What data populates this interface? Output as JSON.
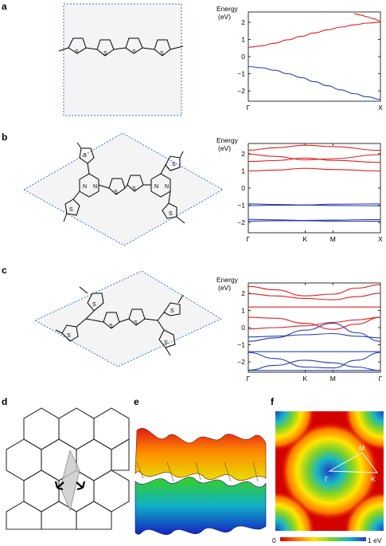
{
  "panel_labels": {
    "a": "a",
    "b": "b",
    "c": "c",
    "d": "d",
    "e": "e",
    "f": "f"
  },
  "molecule_atoms": {
    "sulfur": "S",
    "nitrogen": "N"
  },
  "colors": {
    "conduction": "#e02020",
    "valence": "#2a3fa8",
    "cell_border": "#3f6fd0",
    "cell_fill": "#f3f3f3"
  },
  "chart_data": [
    {
      "id": "a",
      "type": "line",
      "ylabel_line1": "Energy",
      "ylabel_line2": "(eV)",
      "ylim": [
        -2.6,
        2.6
      ],
      "yticks": [
        "2",
        "1",
        "0",
        "−1",
        "−2"
      ],
      "ytick_values": [
        2,
        1,
        0,
        -1,
        -2
      ],
      "xticks": [
        "Γ",
        "X"
      ],
      "xtick_pos": [
        0,
        1
      ],
      "series": [
        {
          "band": "conduction",
          "x": [
            0,
            0.1,
            0.2,
            0.3,
            0.4,
            0.5,
            0.6,
            0.7,
            0.8,
            0.9,
            1
          ],
          "y": [
            0.55,
            0.62,
            0.78,
            0.98,
            1.18,
            1.38,
            1.56,
            1.72,
            1.85,
            1.95,
            2.0
          ]
        },
        {
          "band": "conduction",
          "x": [
            0.8,
            0.85,
            0.9,
            0.95,
            1
          ],
          "y": [
            2.5,
            2.42,
            2.32,
            2.2,
            2.05
          ]
        },
        {
          "band": "valence",
          "x": [
            0,
            0.1,
            0.2,
            0.3,
            0.4,
            0.5,
            0.6,
            0.7,
            0.8,
            0.9,
            1
          ],
          "y": [
            -0.58,
            -0.65,
            -0.8,
            -1.0,
            -1.22,
            -1.46,
            -1.7,
            -1.94,
            -2.16,
            -2.34,
            -2.5
          ]
        }
      ]
    },
    {
      "id": "b",
      "type": "line",
      "ylabel_line1": "Energy",
      "ylabel_line2": "(eV)",
      "ylim": [
        -2.6,
        2.6
      ],
      "yticks": [
        "2",
        "1",
        "0",
        "−1",
        "−2"
      ],
      "ytick_values": [
        2,
        1,
        0,
        -1,
        -2
      ],
      "xticks": [
        "Γ",
        "K",
        "M",
        "X"
      ],
      "xtick_pos": [
        0,
        0.43,
        0.64,
        1
      ],
      "series": [
        {
          "band": "conduction",
          "x": [
            0,
            0.2,
            0.43,
            0.64,
            1
          ],
          "y": [
            2.2,
            2.35,
            2.5,
            2.42,
            2.2
          ]
        },
        {
          "band": "conduction",
          "x": [
            0,
            0.2,
            0.43,
            0.64,
            1
          ],
          "y": [
            1.98,
            1.85,
            1.65,
            1.72,
            1.95
          ]
        },
        {
          "band": "conduction",
          "x": [
            0,
            0.2,
            0.43,
            0.64,
            1
          ],
          "y": [
            1.55,
            1.6,
            1.75,
            1.62,
            1.5
          ]
        },
        {
          "band": "conduction",
          "x": [
            0,
            0.2,
            0.43,
            0.64,
            1
          ],
          "y": [
            1.0,
            1.05,
            1.15,
            1.08,
            1.0
          ]
        },
        {
          "band": "valence",
          "x": [
            0,
            0.2,
            0.43,
            0.64,
            1
          ],
          "y": [
            -0.92,
            -0.95,
            -0.98,
            -0.94,
            -0.92
          ]
        },
        {
          "band": "valence",
          "x": [
            0,
            0.2,
            0.43,
            0.64,
            1
          ],
          "y": [
            -1.02,
            -1.0,
            -0.99,
            -1.01,
            -1.03
          ]
        },
        {
          "band": "valence",
          "x": [
            0,
            0.2,
            0.43,
            0.64,
            1
          ],
          "y": [
            -1.82,
            -1.85,
            -1.88,
            -1.86,
            -1.83
          ]
        },
        {
          "band": "valence",
          "x": [
            0,
            0.2,
            0.43,
            0.64,
            1
          ],
          "y": [
            -1.92,
            -1.9,
            -1.9,
            -1.92,
            -1.93
          ]
        }
      ]
    },
    {
      "id": "c",
      "type": "line",
      "ylabel_line1": "Energy",
      "ylabel_line2": "(eV)",
      "ylim": [
        -2.6,
        2.6
      ],
      "yticks": [
        "2",
        "1",
        "0",
        "−1",
        "−2"
      ],
      "ytick_values": [
        2,
        1,
        0,
        -1,
        -2
      ],
      "xticks": [
        "Γ",
        "K",
        "M",
        "Γ"
      ],
      "xtick_pos": [
        0,
        0.43,
        0.64,
        1
      ],
      "series": [
        {
          "band": "conduction",
          "x": [
            0,
            0.2,
            0.43,
            0.64,
            0.82,
            1
          ],
          "y": [
            2.4,
            2.2,
            1.85,
            1.95,
            2.3,
            2.5
          ]
        },
        {
          "band": "conduction",
          "x": [
            0,
            0.2,
            0.43,
            0.64,
            0.82,
            1
          ],
          "y": [
            1.98,
            1.85,
            1.7,
            1.62,
            1.8,
            2.0
          ]
        },
        {
          "band": "conduction",
          "x": [
            0,
            0.2,
            0.43,
            0.64,
            0.82,
            1
          ],
          "y": [
            1.2,
            1.2,
            1.2,
            1.2,
            1.2,
            1.2
          ]
        },
        {
          "band": "conduction",
          "x": [
            0,
            0.2,
            0.43,
            0.64,
            0.82,
            1
          ],
          "y": [
            0.6,
            0.55,
            0.25,
            -0.1,
            0.2,
            0.6
          ]
        },
        {
          "band": "conduction",
          "x": [
            0,
            0.2,
            0.43,
            0.64,
            0.82,
            1
          ],
          "y": [
            -0.08,
            0.0,
            0.1,
            0.3,
            0.45,
            0.6
          ]
        },
        {
          "band": "valence",
          "x": [
            0,
            0.2,
            0.43,
            0.64,
            0.82,
            1
          ],
          "y": [
            -0.8,
            -0.6,
            -0.15,
            0.25,
            -0.3,
            -0.8
          ]
        },
        {
          "band": "valence",
          "x": [
            0,
            0.2,
            0.43,
            0.64,
            0.82,
            1
          ],
          "y": [
            -0.55,
            -0.5,
            -0.42,
            -0.35,
            -0.5,
            -0.6
          ]
        },
        {
          "band": "valence",
          "x": [
            0,
            0.2,
            0.43,
            0.64,
            0.82,
            1
          ],
          "y": [
            -1.4,
            -1.4,
            -1.4,
            -1.4,
            -1.4,
            -1.4
          ]
        },
        {
          "band": "valence",
          "x": [
            0,
            0.2,
            0.43,
            0.64,
            0.82,
            1
          ],
          "y": [
            -1.45,
            -1.8,
            -2.3,
            -2.35,
            -1.9,
            -1.45
          ]
        },
        {
          "band": "valence",
          "x": [
            0,
            0.2,
            0.43,
            0.64,
            0.82,
            1
          ],
          "y": [
            -2.48,
            -2.2,
            -1.9,
            -2.05,
            -2.3,
            -2.5
          ]
        },
        {
          "band": "valence",
          "x": [
            0,
            0.2,
            0.43,
            0.64,
            0.82,
            1
          ],
          "y": [
            -2.5,
            -2.5,
            -2.5,
            -2.5,
            -2.5,
            -2.5
          ]
        }
      ]
    },
    {
      "id": "f",
      "type": "heatmap",
      "colorbar_min_label": "0",
      "colorbar_max_label": "1 eV",
      "kpoints": [
        "Γ",
        "M",
        "K"
      ],
      "colors": [
        "#d40000",
        "#ff7a00",
        "#ffe600",
        "#7bd12a",
        "#19b5c9",
        "#1d3fc2"
      ]
    }
  ]
}
